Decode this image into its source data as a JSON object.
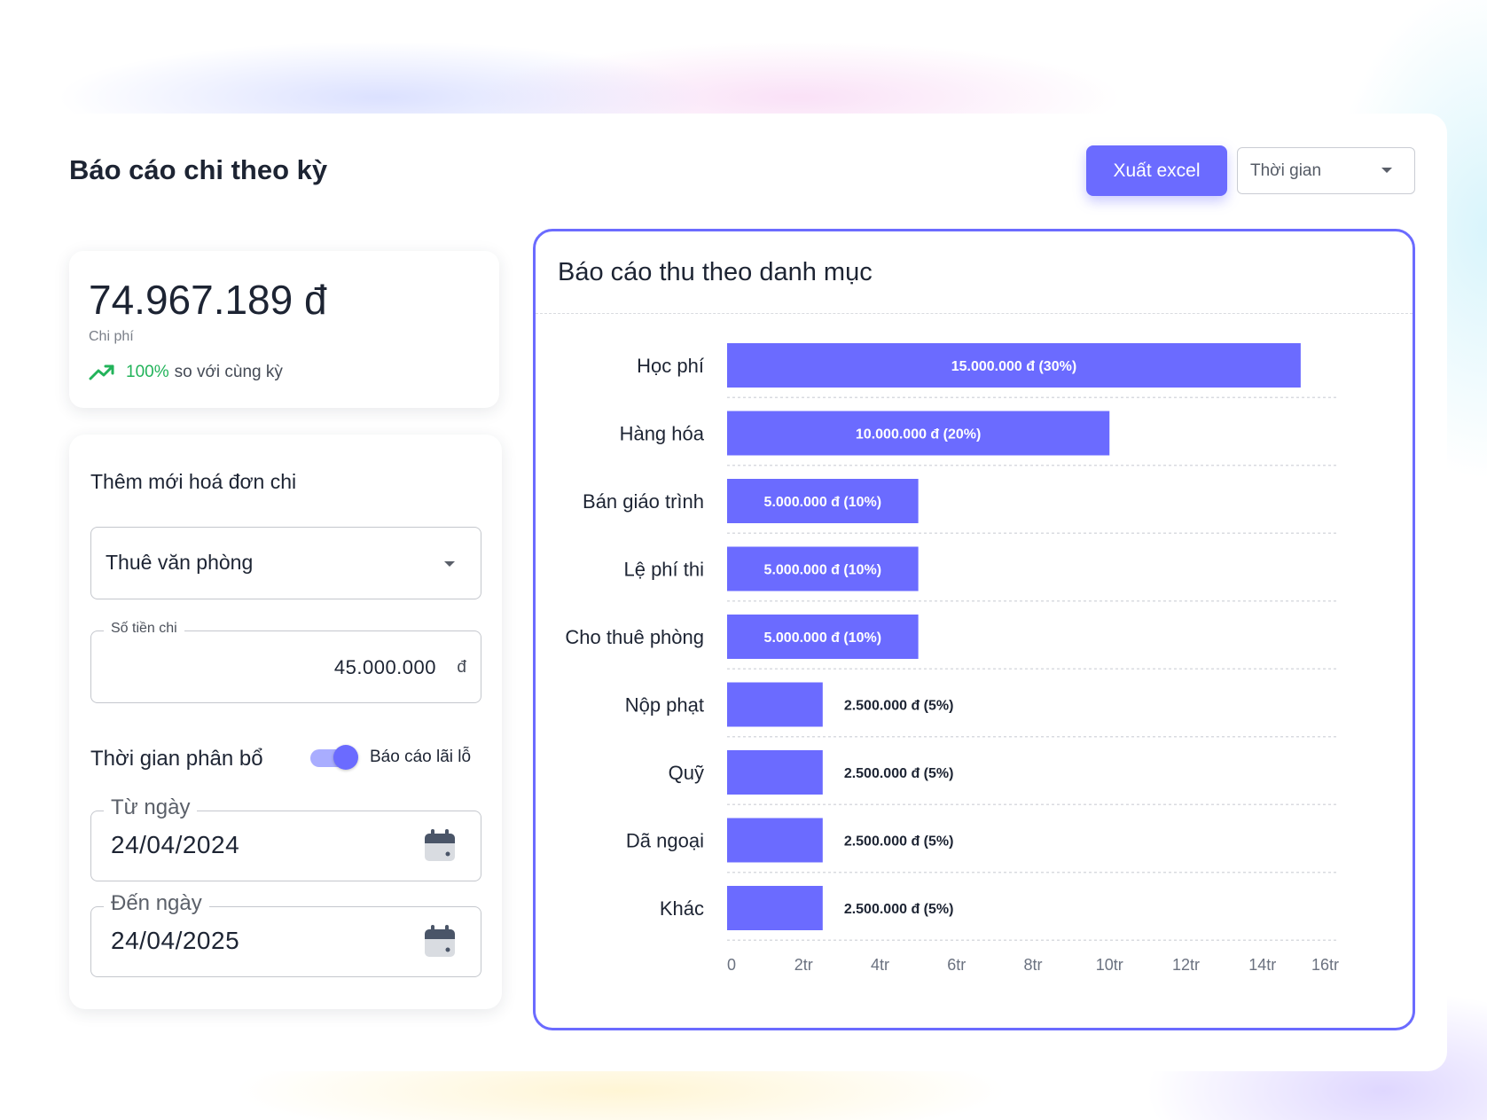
{
  "page": {
    "title": "Báo cáo chi theo kỳ",
    "export_label": "Xuất excel",
    "time_select_placeholder": "Thời gian"
  },
  "summary": {
    "value": "74.967.189 đ",
    "label": "Chi phí",
    "trend_percent": "100%",
    "trend_text": "so với cùng kỳ",
    "trend_color": "#22b35a"
  },
  "form": {
    "title": "Thêm mới hoá đơn chi",
    "category_value": "Thuê văn phòng",
    "amount_label": "Số tiền chi",
    "amount_value": "45.000.000",
    "amount_unit": "đ",
    "allocation_label": "Thời gian phân bổ",
    "toggle_label": "Báo cáo lãi lỗ",
    "toggle_on": true,
    "from_label": "Từ ngày",
    "from_value": "24/04/2024",
    "to_label": "Đến ngày",
    "to_value": "24/04/2025"
  },
  "colors": {
    "accent": "#6b6bff",
    "text": "#1d2433"
  },
  "chart_data": {
    "type": "bar",
    "orientation": "horizontal",
    "title": "Báo cáo thu theo danh mục",
    "categories": [
      "Học phí",
      "Hàng hóa",
      "Bán giáo trình",
      "Lệ phí thi",
      "Cho thuê phòng",
      "Nộp phạt",
      "Quỹ",
      "Dã ngoại",
      "Khác"
    ],
    "values": [
      15000000,
      10000000,
      5000000,
      5000000,
      5000000,
      2500000,
      2500000,
      2500000,
      2500000
    ],
    "data_labels": [
      "15.000.000 đ (30%)",
      "10.000.000 đ (20%)",
      "5.000.000 đ (10%)",
      "5.000.000 đ (10%)",
      "5.000.000 đ (10%)",
      "2.500.000 đ (5%)",
      "2.500.000 đ (5%)",
      "2.500.000 đ (5%)",
      "2.500.000 đ (5%)"
    ],
    "x_ticks": [
      "0",
      "2tr",
      "4tr",
      "6tr",
      "8tr",
      "10tr",
      "12tr",
      "14tr",
      "16tr"
    ],
    "xlim": [
      0,
      16000000
    ],
    "grid": true,
    "bar_color": "#6b6bff"
  }
}
